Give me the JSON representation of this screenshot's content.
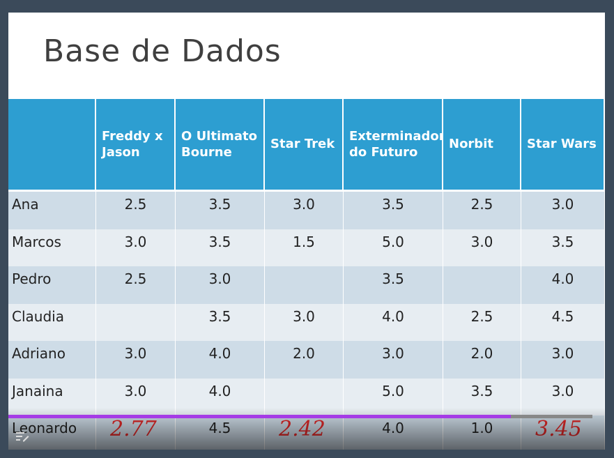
{
  "title": "Base de Dados",
  "table": {
    "header": [
      null,
      "Freddy x Jason",
      "O Ultimato Bourne",
      "Star Trek",
      "Exterminador do Futuro",
      "Norbit",
      "Star Wars"
    ],
    "rows": [
      [
        "Ana",
        "2.5",
        "3.5",
        "3.0",
        "3.5",
        "2.5",
        "3.0"
      ],
      [
        "Marcos",
        "3.0",
        "3.5",
        "1.5",
        "5.0",
        "3.0",
        "3.5"
      ],
      [
        "Pedro",
        "2.5",
        "3.0",
        null,
        "3.5",
        null,
        "4.0"
      ],
      [
        "Claudia",
        null,
        "3.5",
        "3.0",
        "4.0",
        "2.5",
        "4.5"
      ],
      [
        "Adriano",
        "3.0",
        "4.0",
        "2.0",
        "3.0",
        "2.0",
        "3.0"
      ],
      [
        "Janaina",
        "3.0",
        "4.0",
        null,
        "5.0",
        "3.5",
        "3.0"
      ],
      [
        "Leonardo",
        null,
        "4.5",
        null,
        "4.0",
        "1.0",
        null
      ]
    ]
  },
  "annotations": [
    "2.77",
    "2.42",
    "3.45"
  ]
}
